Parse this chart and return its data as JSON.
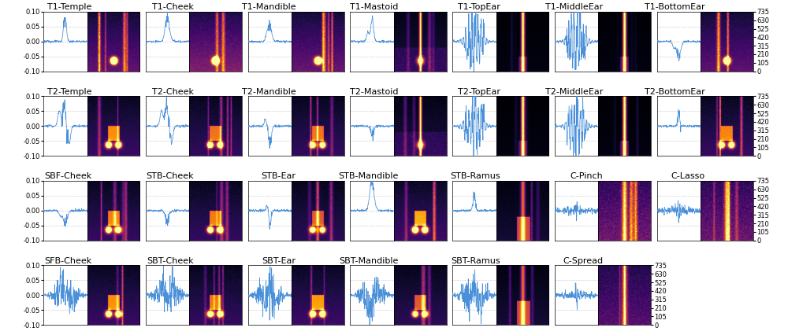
{
  "rows": [
    [
      "T1-Temple",
      "T1-Cheek",
      "T1-Mandible",
      "T1-Mastoid",
      "T1-TopEar",
      "T1-MiddleEar",
      "T1-BottomEar"
    ],
    [
      "T2-Temple",
      "T2-Cheek",
      "T2-Mandible",
      "T2-Mastoid",
      "T2-TopEar",
      "T2-MiddleEar",
      "T2-BottomEar"
    ],
    [
      "SBF-Cheek",
      "STB-Cheek",
      "STB-Ear",
      "STB-Mandible",
      "STB-Ramus",
      "C-Pinch",
      "C-Lasso"
    ],
    [
      "SFB-Cheek",
      "SBT-Cheek",
      "SBT-Ear",
      "SBT-Mandible",
      "SBT-Ramus",
      "C-Spread",
      null
    ]
  ],
  "yticks_freq": [
    0,
    105,
    210,
    315,
    420,
    525,
    630,
    735
  ],
  "waveform_ylim": [
    -0.1,
    0.1
  ],
  "waveform_yticks": [
    -0.1,
    -0.05,
    0.0,
    0.05,
    0.1
  ],
  "waveform_color": "#4a90d9",
  "waveform_bg": "#f8f8f8",
  "spec_bg": "#08005a",
  "title_fontsize": 8,
  "tick_fontsize": 6,
  "fig_width": 10.0,
  "fig_height": 4.26,
  "n_time": 180,
  "n_freq": 140
}
